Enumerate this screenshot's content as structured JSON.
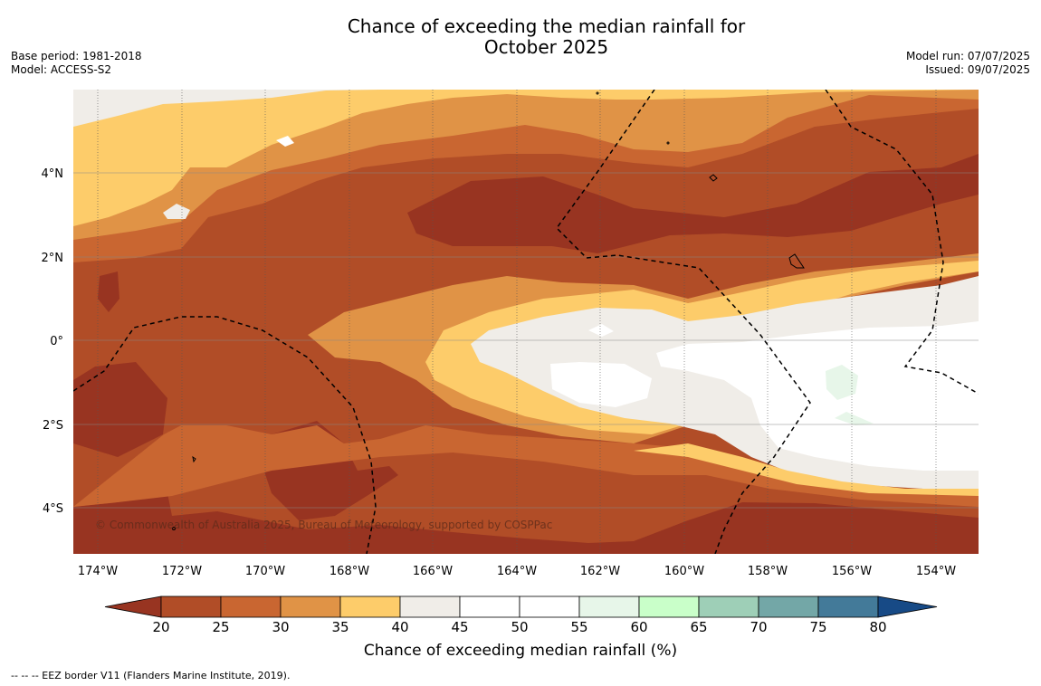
{
  "title_line1": "Chance of exceeding the median rainfall for",
  "title_line2": "October 2025",
  "base_period": "Base period: 1981-2018",
  "model": "Model: ACCESS-S2",
  "model_run": "Model run: 07/07/2025",
  "issued": "Issued: 09/07/2025",
  "copyright": "© Commonwealth of Australia 2025, Bureau of Meteorology, supported by COSPPac",
  "lon_labels": [
    "174°W",
    "172°W",
    "170°W",
    "168°W",
    "166°W",
    "164°W",
    "162°W",
    "160°W",
    "158°W",
    "156°W",
    "154°W"
  ],
  "lat_labels": [
    "4°N",
    "2°N",
    "0°",
    "2°S",
    "4°S"
  ],
  "colorbar": {
    "title": "Chance of exceeding median rainfall (%)",
    "ticks": [
      "20",
      "25",
      "30",
      "35",
      "40",
      "45",
      "50",
      "55",
      "60",
      "65",
      "70",
      "75",
      "80"
    ],
    "colors": [
      "#983421",
      "#b14d27",
      "#c96631",
      "#e09346",
      "#fdcc6a",
      "#f0ede8",
      "#ffffff",
      "#ffffff",
      "#e7f6e9",
      "#c9ffc9",
      "#9ecfb7",
      "#73a7a7",
      "#437a99",
      "#174a86"
    ]
  },
  "footnote": "--  --  -- EEZ border V11 (Flanders Marine Institute, 2019)."
}
